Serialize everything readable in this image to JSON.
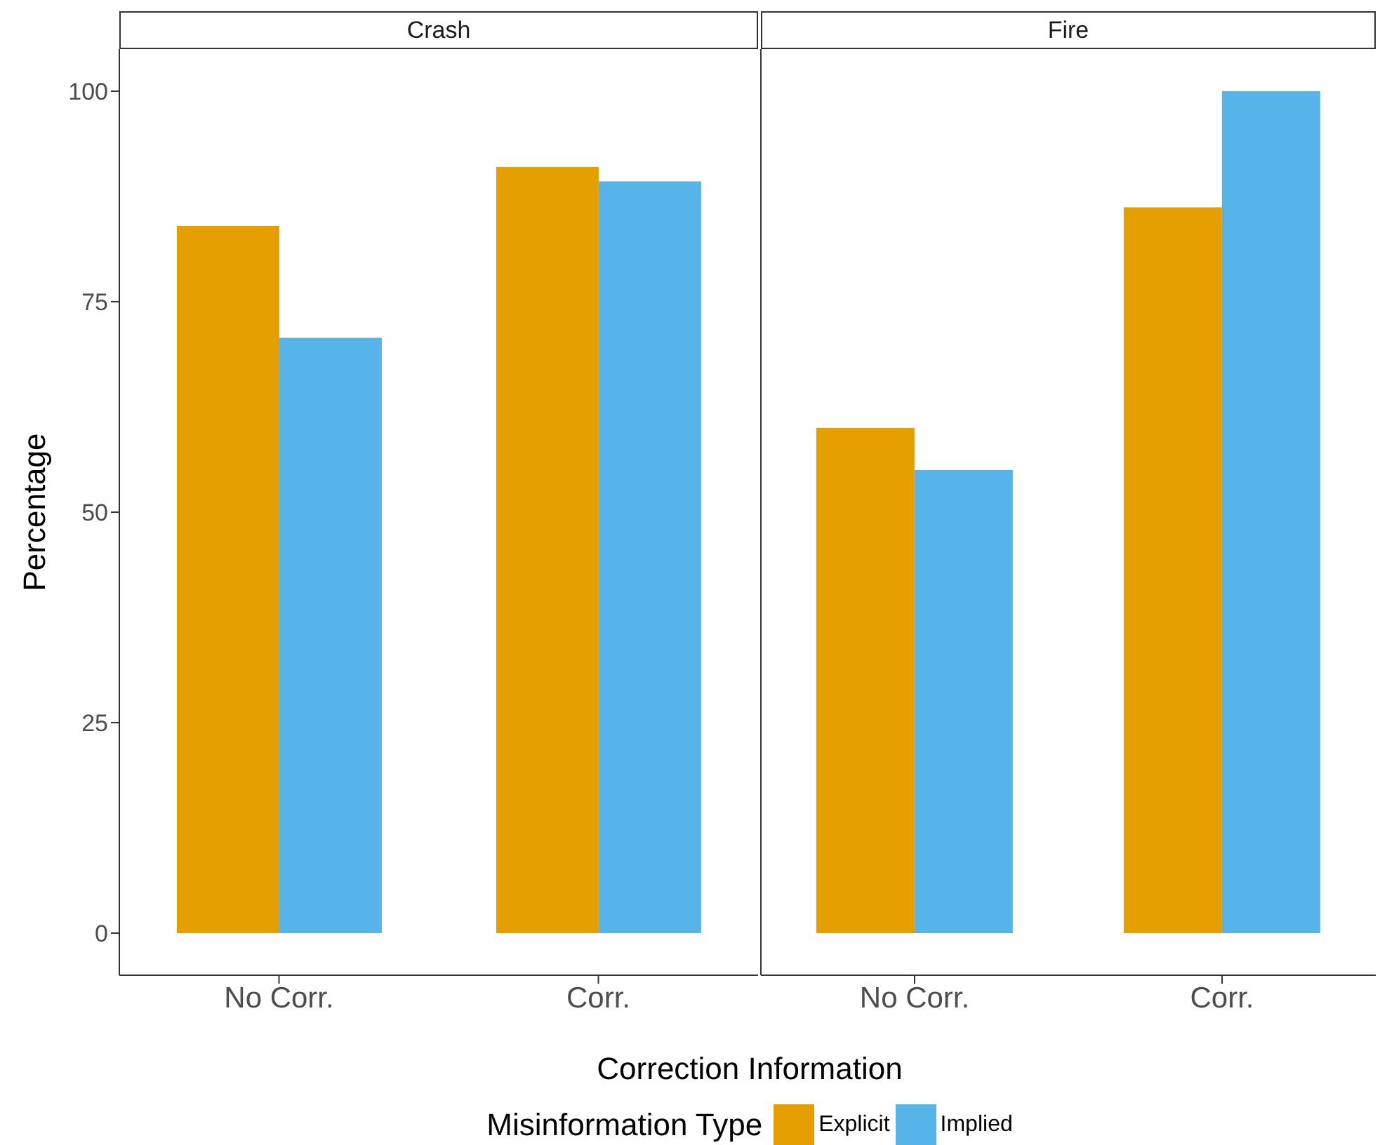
{
  "chart_data": [
    {
      "type": "bar",
      "title": "Crash",
      "xlabel": "Correction Information",
      "ylabel": "Percentage",
      "legend_title": "Misinformation Type",
      "legend": "bottom",
      "categories": [
        "No Corr.",
        "Corr."
      ],
      "series": [
        {
          "name": "Explicit",
          "color": "#e69f00",
          "values": [
            84,
            91
          ]
        },
        {
          "name": "Implied",
          "color": "#56b4e9",
          "values": [
            70.7,
            89.3
          ]
        }
      ],
      "ylim": [
        -5,
        105
      ],
      "yticks": [
        0,
        25,
        50,
        75,
        100
      ],
      "grid": false
    },
    {
      "type": "bar",
      "title": "Fire",
      "categories": [
        "No Corr.",
        "Corr."
      ],
      "series": [
        {
          "color": "#e69f00",
          "values": [
            60,
            86.2
          ]
        },
        {
          "color": "#56b4e9",
          "values": [
            55,
            100
          ]
        }
      ],
      "ylim": [
        -5,
        105
      ],
      "yticks": [
        0,
        25,
        50,
        75,
        100
      ],
      "grid": false,
      "tick_labels": "x"
    }
  ]
}
